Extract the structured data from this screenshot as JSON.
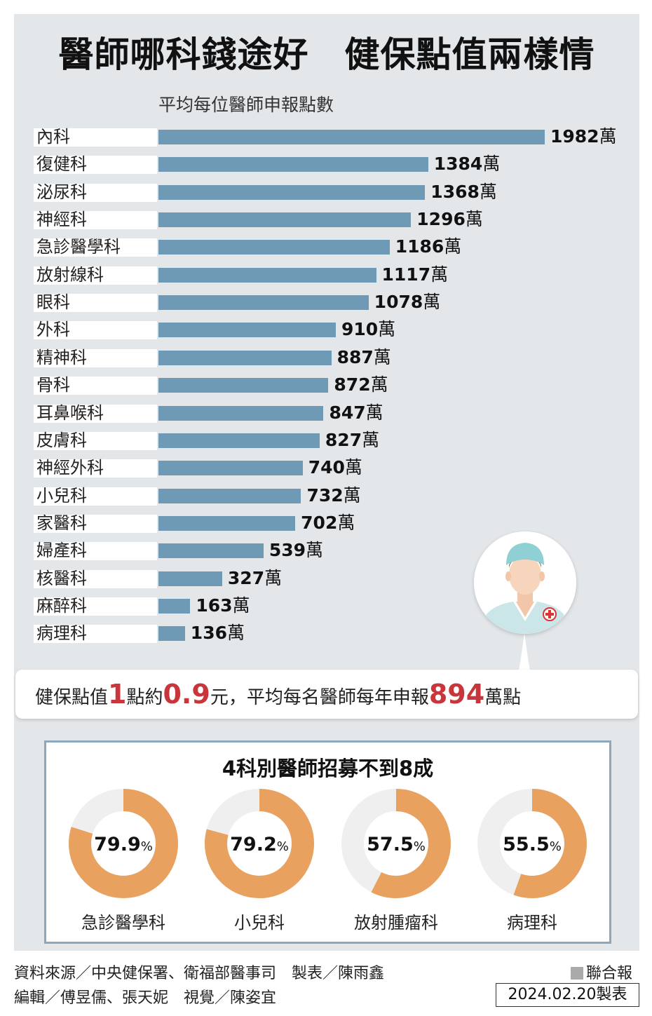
{
  "title": "醫師哪科錢途好　健保點值兩樣情",
  "chart_data": [
    {
      "type": "bar",
      "orientation": "horizontal",
      "title": "平均每位醫師申報點數",
      "unit": "萬",
      "categories": [
        "內科",
        "復健科",
        "泌尿科",
        "神經科",
        "急診醫學科",
        "放射線科",
        "眼科",
        "外科",
        "精神科",
        "骨科",
        "耳鼻喉科",
        "皮膚科",
        "神經外科",
        "小兒科",
        "家醫科",
        "婦產科",
        "核醫科",
        "麻醉科",
        "病理科"
      ],
      "values": [
        1982,
        1384,
        1368,
        1296,
        1186,
        1117,
        1078,
        910,
        887,
        872,
        847,
        827,
        740,
        732,
        702,
        539,
        327,
        163,
        136
      ],
      "xlim": [
        0,
        1982
      ]
    },
    {
      "type": "pie",
      "variant": "donut",
      "title": "4科別醫師招募不到8成",
      "categories": [
        "急診醫學科",
        "小兒科",
        "放射腫瘤科",
        "病理科"
      ],
      "values": [
        79.9,
        79.2,
        57.5,
        55.5
      ],
      "labels": [
        "79.9",
        "79.2",
        "57.5",
        "55.5"
      ],
      "unit": "%",
      "colors": {
        "filled": "#e8a15e",
        "empty": "#efefef"
      }
    }
  ],
  "note": {
    "t1": "健保點值",
    "h1": "1",
    "t2": "點約",
    "h2": "0.9",
    "t3": "元，平均每名醫師每年申報",
    "h3": "894",
    "t4": "萬點"
  },
  "footer": {
    "line1": "資料來源／中央健保署、衛福部醫事司　製表／陳雨鑫",
    "line2": "編輯／傅昱儒、張天妮　視覺／陳姿宜",
    "brand": "聯合報",
    "date": "2024.02.20製表"
  },
  "colors": {
    "bar": "#6f9ab6",
    "highlight": "#c8363b",
    "accent": "#e8a15e",
    "panel": "#e4e7ea"
  },
  "icons": {
    "avatar": "doctor-avatar-icon"
  }
}
